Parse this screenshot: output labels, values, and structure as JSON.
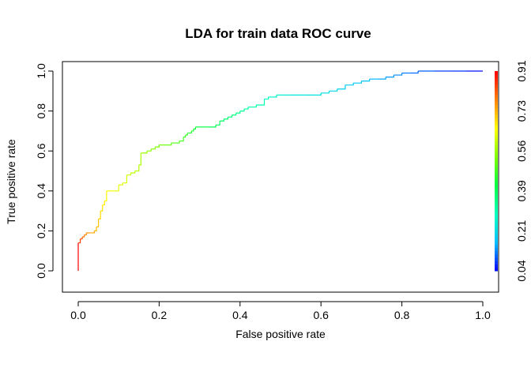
{
  "chart_data": {
    "type": "line",
    "title": "LDA for train data ROC curve",
    "xlabel": "False positive rate",
    "ylabel": "True positive rate",
    "xlim": [
      0,
      1
    ],
    "ylim": [
      0,
      1
    ],
    "x_ticks": [
      "0.0",
      "0.2",
      "0.4",
      "0.6",
      "0.8",
      "1.0"
    ],
    "y_ticks": [
      "0.0",
      "0.2",
      "0.4",
      "0.6",
      "0.8",
      "1.0"
    ],
    "grid": false,
    "colorkey": {
      "label_values": [
        "0.04",
        "0.21",
        "0.39",
        "0.56",
        "0.73",
        "0.91"
      ],
      "range": [
        0.04,
        0.91
      ],
      "colors": [
        "#0000ff",
        "#00bfff",
        "#00ffbf",
        "#00ff40",
        "#7fff00",
        "#ffff00",
        "#ff8000",
        "#ff0000"
      ]
    },
    "series": [
      {
        "x": [
          0.0,
          0.0,
          0.005,
          0.01,
          0.015,
          0.02,
          0.03,
          0.04,
          0.045,
          0.05,
          0.055,
          0.06,
          0.065,
          0.07,
          0.08,
          0.09,
          0.1,
          0.11,
          0.12,
          0.13,
          0.14,
          0.15,
          0.155,
          0.16,
          0.17,
          0.18,
          0.19,
          0.2,
          0.22,
          0.23,
          0.24,
          0.25,
          0.26,
          0.265,
          0.27,
          0.28,
          0.285,
          0.29,
          0.3,
          0.32,
          0.34,
          0.35,
          0.36,
          0.37,
          0.38,
          0.39,
          0.4,
          0.41,
          0.42,
          0.44,
          0.46,
          0.47,
          0.48,
          0.49,
          0.5,
          0.52,
          0.56,
          0.6,
          0.62,
          0.64,
          0.66,
          0.68,
          0.7,
          0.72,
          0.74,
          0.76,
          0.78,
          0.8,
          0.82,
          0.84,
          0.88,
          0.92,
          0.96,
          1.0
        ],
        "y": [
          0.0,
          0.14,
          0.16,
          0.17,
          0.18,
          0.19,
          0.19,
          0.2,
          0.22,
          0.26,
          0.3,
          0.33,
          0.35,
          0.4,
          0.4,
          0.4,
          0.43,
          0.44,
          0.48,
          0.49,
          0.5,
          0.53,
          0.59,
          0.59,
          0.6,
          0.61,
          0.62,
          0.63,
          0.63,
          0.64,
          0.64,
          0.65,
          0.67,
          0.68,
          0.69,
          0.7,
          0.71,
          0.72,
          0.72,
          0.72,
          0.73,
          0.75,
          0.76,
          0.77,
          0.78,
          0.79,
          0.8,
          0.81,
          0.82,
          0.83,
          0.86,
          0.87,
          0.87,
          0.88,
          0.88,
          0.88,
          0.88,
          0.89,
          0.9,
          0.91,
          0.93,
          0.94,
          0.95,
          0.96,
          0.96,
          0.97,
          0.98,
          0.99,
          0.99,
          1.0,
          1.0,
          1.0,
          1.0,
          1.0
        ],
        "cutoff": [
          0.91,
          0.85,
          0.82,
          0.8,
          0.78,
          0.76,
          0.75,
          0.73,
          0.72,
          0.7,
          0.69,
          0.68,
          0.67,
          0.66,
          0.65,
          0.64,
          0.63,
          0.62,
          0.61,
          0.6,
          0.59,
          0.58,
          0.57,
          0.56,
          0.55,
          0.54,
          0.53,
          0.52,
          0.51,
          0.5,
          0.49,
          0.48,
          0.47,
          0.46,
          0.45,
          0.44,
          0.43,
          0.42,
          0.41,
          0.4,
          0.39,
          0.38,
          0.37,
          0.36,
          0.35,
          0.34,
          0.33,
          0.32,
          0.31,
          0.3,
          0.29,
          0.28,
          0.27,
          0.26,
          0.25,
          0.24,
          0.23,
          0.22,
          0.21,
          0.2,
          0.19,
          0.18,
          0.17,
          0.16,
          0.15,
          0.14,
          0.13,
          0.12,
          0.11,
          0.1,
          0.08,
          0.07,
          0.05,
          0.04
        ]
      }
    ]
  }
}
